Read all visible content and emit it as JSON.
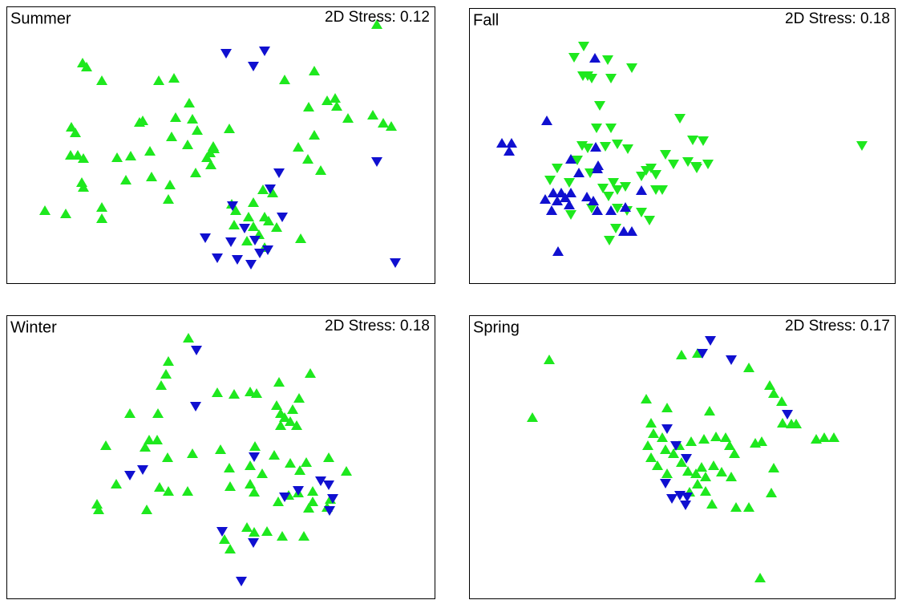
{
  "chart_data": [
    {
      "type": "scatter",
      "title": "Summer",
      "annotation": "2D Stress: 0.12",
      "xlim": [
        8,
        542
      ],
      "ylim": [
        353,
        8
      ],
      "series": [
        {
          "color": "#1ee81e",
          "marker": "triangle-up",
          "x": [
            470,
            103,
            108,
            127,
            198,
            217,
            236,
            174,
            178,
            89,
            94,
            219,
            240,
            246,
            286,
            214,
            234,
            266,
            258,
            262,
            267,
            146,
            163,
            187,
            88,
            97,
            104,
            157,
            189,
            102,
            104,
            212,
            210,
            244,
            263,
            56,
            82,
            127,
            127,
            289,
            294,
            316,
            310,
            330,
            292,
            316,
            323,
            308,
            330,
            355,
            392,
            385,
            408,
            418,
            420,
            434,
            465,
            478,
            488,
            372,
            384,
            400,
            392,
            375,
            340,
            328,
            335,
            345
          ],
          "y": [
            30,
            78,
            83,
            100,
            100,
            97,
            128,
            152,
            150,
            158,
            165,
            146,
            148,
            162,
            160,
            170,
            180,
            182,
            196,
            190,
            185,
            196,
            194,
            188,
            193,
            193,
            197,
            224,
            220,
            227,
            233,
            230,
            248,
            215,
            205,
            262,
            266,
            258,
            272,
            254,
            262,
            252,
            270,
            270,
            280,
            282,
            292,
            300,
            308,
            99,
            88,
            133,
            125,
            122,
            132,
            147,
            143,
            153,
            157,
            183,
            198,
            212,
            168,
            297,
            240,
            236,
            275,
            283
          ]
        },
        {
          "color": "#1010d0",
          "marker": "triangle-down",
          "x": [
            282,
            316,
            330,
            348,
            337,
            290,
            352,
            256,
            271,
            288,
            296,
            313,
            318,
            324,
            334,
            470,
            493,
            305
          ],
          "y": [
            67,
            83,
            64,
            216,
            236,
            257,
            271,
            297,
            322,
            302,
            324,
            330,
            300,
            316,
            312,
            202,
            328,
            285
          ]
        }
      ]
    },
    {
      "type": "scatter",
      "title": "Fall",
      "annotation": "2D Stress: 0.18",
      "xlim": [
        585,
        1116
      ],
      "ylim": [
        353,
        10
      ],
      "series": [
        {
          "color": "#1ee81e",
          "marker": "triangle-down",
          "x": [
            716,
            728,
            758,
            788,
            727,
            733,
            738,
            762,
            748,
            744,
            762,
            726,
            733,
            755,
            770,
            783,
            848,
            864,
            877,
            830,
            858,
            868,
            869,
            883,
            840,
            812,
            818,
            800,
            806,
            720,
            736,
            686,
            710,
            765,
            752,
            770,
            780,
            759,
            826,
            818,
            738,
            770,
            782,
            800,
            810,
            760,
            768,
            712,
            1075,
            695
          ],
          "y": [
            72,
            58,
            75,
            85,
            95,
            95,
            98,
            98,
            132,
            160,
            160,
            182,
            185,
            183,
            180,
            186,
            148,
            175,
            176,
            193,
            202,
            208,
            210,
            205,
            205,
            210,
            218,
            220,
            213,
            200,
            216,
            225,
            228,
            228,
            235,
            237,
            233,
            245,
            237,
            237,
            260,
            260,
            263,
            265,
            275,
            300,
            285,
            268,
            182,
            210
          ]
        },
        {
          "color": "#1010d0",
          "marker": "triangle-up",
          "x": [
            682,
            626,
            638,
            635,
            743,
            746,
            712,
            722,
            745,
            690,
            700,
            712,
            680,
            695,
            705,
            688,
            710,
            732,
            740,
            745,
            762,
            780,
            778,
            788,
            800,
            696,
            742
          ],
          "y": [
            150,
            178,
            178,
            188,
            183,
            206,
            198,
            215,
            210,
            240,
            240,
            240,
            248,
            250,
            246,
            262,
            255,
            245,
            250,
            262,
            262,
            258,
            288,
            288,
            237,
            313,
            72
          ]
        }
      ]
    },
    {
      "type": "scatter",
      "title": "Winter",
      "annotation": "2D Stress: 0.18",
      "xlim": [
        8,
        542
      ],
      "ylim": [
        746,
        393
      ],
      "series": [
        {
          "color": "#1ee81e",
          "marker": "triangle-up",
          "x": [
            235,
            210,
            207,
            201,
            271,
            292,
            312,
            320,
            348,
            373,
            387,
            345,
            350,
            355,
            362,
            370,
            350,
            365,
            162,
            197,
            186,
            181,
            196,
            132,
            145,
            209,
            240,
            275,
            318,
            312,
            342,
            362,
            327,
            382,
            374,
            410,
            432,
            347,
            360,
            372,
            390,
            385,
            390,
            199,
            210,
            234,
            287,
            312,
            317,
            121,
            123,
            183,
            412,
            408,
            286,
            333,
            352,
            379,
            308,
            317,
            280,
            287
          ],
          "y": [
            421,
            450,
            466,
            480,
            489,
            491,
            488,
            490,
            476,
            496,
            465,
            505,
            515,
            520,
            525,
            530,
            530,
            510,
            515,
            515,
            548,
            557,
            548,
            555,
            603,
            570,
            565,
            560,
            556,
            580,
            567,
            577,
            590,
            576,
            586,
            570,
            587,
            625,
            617,
            614,
            612,
            633,
            625,
            607,
            612,
            612,
            606,
            603,
            613,
            628,
            635,
            635,
            622,
            632,
            583,
            662,
            668,
            668,
            657,
            663,
            672,
            684
          ]
        },
        {
          "color": "#1010d0",
          "marker": "triangle-down",
          "x": [
            245,
            244,
            317,
            162,
            178,
            355,
            372,
            400,
            410,
            415,
            411,
            277,
            316,
            301
          ],
          "y": [
            437,
            507,
            570,
            593,
            586,
            620,
            612,
            600,
            605,
            622,
            637,
            663,
            677,
            725
          ]
        }
      ]
    },
    {
      "type": "scatter",
      "title": "Spring",
      "annotation": "2D Stress: 0.17",
      "xlim": [
        585,
        1116
      ],
      "ylim": [
        746,
        393
      ],
      "series": [
        {
          "color": "#1ee81e",
          "marker": "triangle-up",
          "x": [
            685,
            664,
            850,
            870,
            934,
            960,
            965,
            975,
            806,
            832,
            885,
            976,
            987,
            993,
            1018,
            1028,
            1040,
            942,
            950,
            812,
            815,
            808,
            812,
            826,
            830,
            840,
            847,
            862,
            878,
            893,
            905,
            910,
            916,
            850,
            858,
            868,
            875,
            880,
            890,
            900,
            912,
            820,
            832,
            870,
            880,
            860,
            888,
            918,
            934,
            962,
            965,
            948
          ],
          "y": [
            448,
            520,
            442,
            440,
            458,
            480,
            490,
            500,
            497,
            508,
            512,
            527,
            528,
            528,
            547,
            545,
            545,
            552,
            550,
            527,
            540,
            555,
            570,
            545,
            560,
            565,
            555,
            550,
            547,
            544,
            545,
            555,
            565,
            576,
            587,
            590,
            582,
            594,
            580,
            588,
            594,
            580,
            590,
            603,
            612,
            613,
            628,
            632,
            632,
            614,
            583,
            720
          ]
        },
        {
          "color": "#1010d0",
          "marker": "triangle-down",
          "x": [
            886,
            876,
            912,
            982,
            832,
            843,
            856,
            830,
            838,
            857,
            855,
            848
          ],
          "y": [
            425,
            441,
            449,
            517,
            535,
            556,
            572,
            603,
            622,
            620,
            630,
            618
          ]
        }
      ]
    }
  ]
}
